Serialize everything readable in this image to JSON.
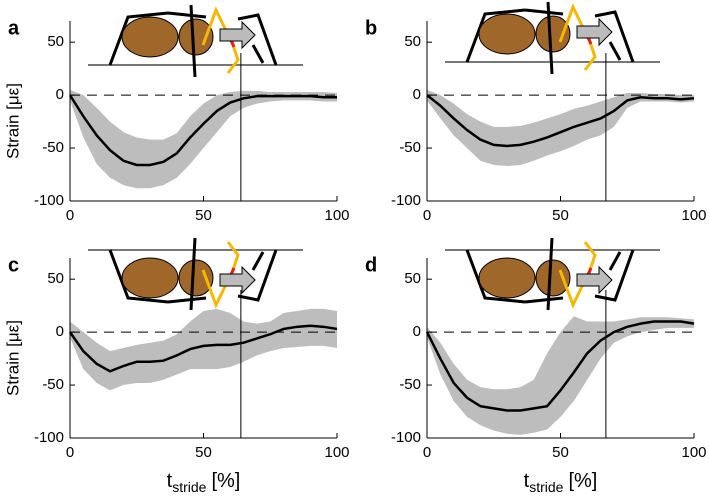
{
  "chart_data": [
    {
      "type": "line",
      "panel": "a",
      "ylabel": "Strain [με]",
      "xlim": [
        0,
        100
      ],
      "ylim": [
        -100,
        70
      ],
      "xticks": [
        0,
        50,
        100
      ],
      "yticks": [
        -100,
        -50,
        0,
        50
      ],
      "x": [
        0,
        5,
        10,
        15,
        20,
        25,
        30,
        35,
        40,
        45,
        50,
        55,
        60,
        65,
        70,
        75,
        80,
        85,
        90,
        95,
        100
      ],
      "color": "#000000",
      "band_color": "#bdbdbd",
      "values": [
        0,
        -20,
        -38,
        -52,
        -62,
        -66,
        -66,
        -63,
        -55,
        -40,
        -27,
        -15,
        -7,
        -3,
        -1,
        -1,
        -1,
        -1,
        -1,
        -2,
        -2
      ],
      "lower": [
        -5,
        -40,
        -65,
        -78,
        -85,
        -88,
        -88,
        -85,
        -78,
        -65,
        -50,
        -35,
        -20,
        -12,
        -8,
        -6,
        -5,
        -5,
        -5,
        -6,
        -6
      ],
      "upper": [
        5,
        0,
        -12,
        -25,
        -35,
        -40,
        -42,
        -42,
        -36,
        -20,
        -8,
        0,
        3,
        4,
        4,
        3,
        3,
        3,
        3,
        3,
        2
      ],
      "hline": 0,
      "vline": 64
    },
    {
      "type": "line",
      "panel": "b",
      "xlim": [
        0,
        100
      ],
      "ylim": [
        -100,
        70
      ],
      "xticks": [
        0,
        50,
        100
      ],
      "yticks": [
        -100,
        -50,
        0,
        50
      ],
      "x": [
        0,
        5,
        10,
        15,
        20,
        25,
        30,
        35,
        40,
        45,
        50,
        55,
        60,
        65,
        70,
        75,
        80,
        85,
        90,
        95,
        100
      ],
      "color": "#000000",
      "band_color": "#bdbdbd",
      "values": [
        0,
        -10,
        -22,
        -33,
        -42,
        -47,
        -48,
        -47,
        -44,
        -40,
        -35,
        -30,
        -26,
        -22,
        -15,
        -5,
        -2,
        -3,
        -3,
        -4,
        -3
      ],
      "lower": [
        -5,
        -22,
        -38,
        -50,
        -62,
        -66,
        -67,
        -66,
        -62,
        -57,
        -53,
        -48,
        -42,
        -38,
        -30,
        -12,
        -6,
        -6,
        -6,
        -7,
        -6
      ],
      "upper": [
        5,
        0,
        -8,
        -18,
        -25,
        -30,
        -30,
        -29,
        -26,
        -22,
        -18,
        -13,
        -10,
        -6,
        -2,
        2,
        2,
        1,
        1,
        0,
        0
      ],
      "hline": 0,
      "vline": 67
    },
    {
      "type": "line",
      "panel": "c",
      "ylabel": "Strain [με]",
      "xlabel": "t",
      "xlabel_subscript": "stride",
      "xlabel_unit": "[%]",
      "xlim": [
        0,
        100
      ],
      "ylim": [
        -100,
        70
      ],
      "xticks": [
        0,
        50,
        100
      ],
      "yticks": [
        -100,
        -50,
        0,
        50
      ],
      "x": [
        0,
        5,
        10,
        15,
        20,
        25,
        30,
        35,
        40,
        45,
        50,
        55,
        60,
        65,
        70,
        75,
        80,
        85,
        90,
        95,
        100
      ],
      "color": "#000000",
      "band_color": "#bdbdbd",
      "values": [
        0,
        -18,
        -30,
        -37,
        -32,
        -28,
        -28,
        -27,
        -22,
        -16,
        -13,
        -12,
        -12,
        -10,
        -6,
        -2,
        3,
        5,
        6,
        5,
        3
      ],
      "lower": [
        -5,
        -35,
        -48,
        -55,
        -50,
        -48,
        -48,
        -45,
        -40,
        -35,
        -35,
        -35,
        -33,
        -28,
        -22,
        -18,
        -15,
        -14,
        -13,
        -13,
        -15
      ],
      "upper": [
        10,
        0,
        -10,
        -18,
        -15,
        -12,
        -10,
        -8,
        -2,
        10,
        20,
        22,
        18,
        10,
        8,
        10,
        18,
        20,
        22,
        22,
        20
      ],
      "hline": 0,
      "vline": 64
    },
    {
      "type": "line",
      "panel": "d",
      "xlabel": "t",
      "xlabel_subscript": "stride",
      "xlabel_unit": "[%]",
      "xlim": [
        0,
        100
      ],
      "ylim": [
        -100,
        70
      ],
      "xticks": [
        0,
        50,
        100
      ],
      "yticks": [
        -100,
        -50,
        0,
        50
      ],
      "x": [
        0,
        5,
        10,
        15,
        20,
        25,
        30,
        35,
        40,
        45,
        50,
        55,
        60,
        65,
        70,
        75,
        80,
        85,
        90,
        95,
        100
      ],
      "color": "#000000",
      "band_color": "#bdbdbd",
      "values": [
        0,
        -25,
        -48,
        -62,
        -70,
        -72,
        -74,
        -74,
        -72,
        -70,
        -55,
        -38,
        -20,
        -8,
        0,
        5,
        8,
        10,
        10,
        10,
        8
      ],
      "lower": [
        -5,
        -40,
        -65,
        -80,
        -88,
        -93,
        -96,
        -97,
        -95,
        -92,
        -80,
        -65,
        -45,
        -25,
        -10,
        -4,
        0,
        2,
        4,
        4,
        4
      ],
      "upper": [
        5,
        -10,
        -30,
        -45,
        -52,
        -54,
        -54,
        -52,
        -45,
        -20,
        0,
        15,
        10,
        10,
        10,
        12,
        14,
        14,
        14,
        13,
        12
      ],
      "hline": 0,
      "vline": 67
    }
  ]
}
